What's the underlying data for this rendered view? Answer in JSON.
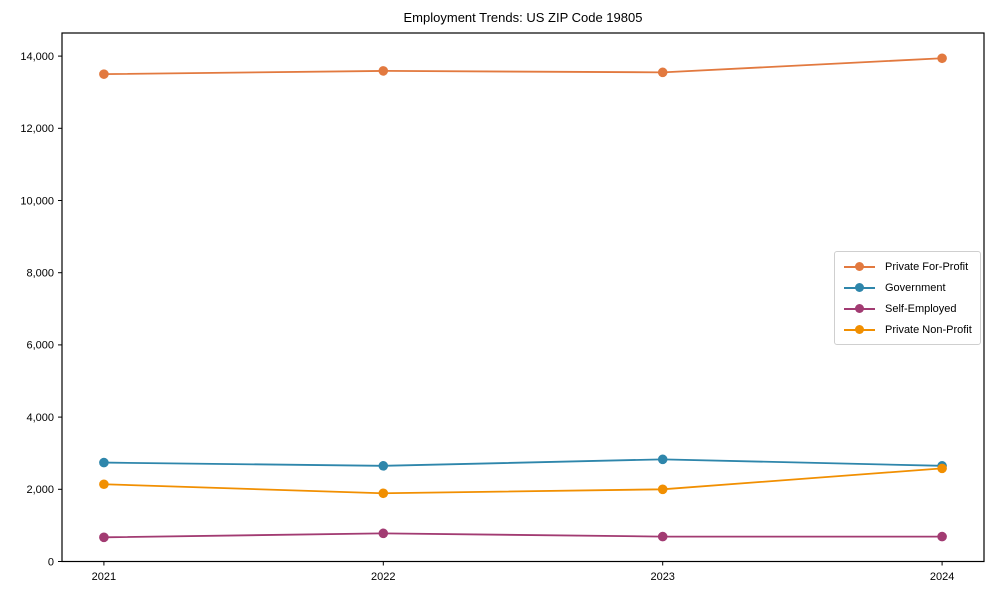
{
  "chart_data": {
    "type": "line",
    "title": "Employment Trends: US ZIP Code 19805",
    "x": [
      2021,
      2022,
      2023,
      2024
    ],
    "categories": [
      "2021",
      "2022",
      "2023",
      "2024"
    ],
    "series": [
      {
        "name": "Private For-Profit",
        "color": "#E2793F",
        "values": [
          13500,
          13590,
          13550,
          13940
        ]
      },
      {
        "name": "Government",
        "color": "#2E86AB",
        "values": [
          2740,
          2650,
          2830,
          2650
        ]
      },
      {
        "name": "Self-Employed",
        "color": "#A23B72",
        "values": [
          670,
          780,
          690,
          690
        ]
      },
      {
        "name": "Private Non-Profit",
        "color": "#F18F01",
        "values": [
          2140,
          1890,
          2000,
          2580
        ]
      }
    ],
    "xlabel": "",
    "ylabel": "",
    "ylim": [
      0,
      14640
    ],
    "x_margin": 0.15,
    "y_ticks": [
      0,
      2000,
      4000,
      6000,
      8000,
      10000,
      12000,
      14000
    ],
    "y_tick_labels": [
      "0",
      "2,000",
      "4,000",
      "6,000",
      "8,000",
      "10,000",
      "12,000",
      "14,000"
    ],
    "grid": false,
    "legend_position": "center-right",
    "marker": "circle",
    "axis_color": "#000000",
    "legend_border_color": "#cfcfcf",
    "background_color": "#ffffff"
  }
}
